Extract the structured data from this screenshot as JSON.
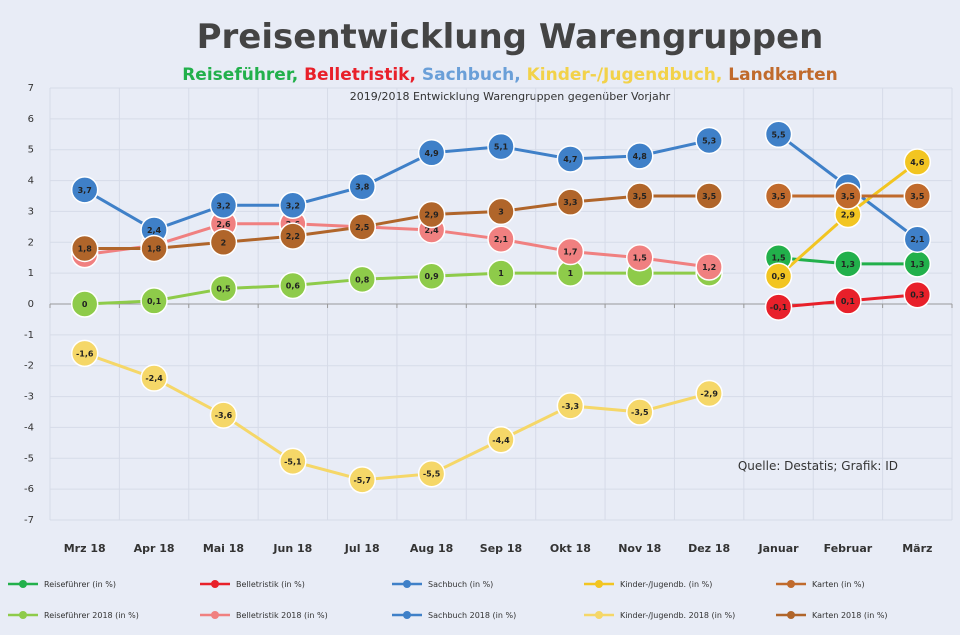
{
  "chart_data": {
    "type": "line",
    "title": "Preisentwicklung Warengruppen",
    "subtitle_parts": [
      {
        "text": "Reiseführer, ",
        "color": "#22b04b"
      },
      {
        "text": "Belletristik, ",
        "color": "#e8202a"
      },
      {
        "text": "Sachbuch, ",
        "color": "#6a9fd8"
      },
      {
        "text": "Kinder-/Jugendbuch, ",
        "color": "#f2d24a"
      },
      {
        "text": "Landkarten",
        "color": "#c06a2c"
      }
    ],
    "note": "2019/2018 Entwicklung Warengruppen gegenüber Vorjahr",
    "source": "Quelle: Destatis; Grafik: ID",
    "ylim": [
      -7,
      7
    ],
    "yticks": [
      "7",
      "6",
      "5",
      "4",
      "3",
      "2",
      "1",
      "0",
      "-1",
      "-2",
      "-3",
      "-4",
      "-5",
      "-6",
      "-7"
    ],
    "categories": [
      "Mrz 18",
      "Apr 18",
      "Mai 18",
      "Jun 18",
      "Jul 18",
      "Aug 18",
      "Sep 18",
      "Okt 18",
      "Nov 18",
      "Dez 18",
      "Januar",
      "Februar",
      "März"
    ],
    "series_2018": [
      {
        "name": "Reiseführer 2018 (in %)",
        "color": "#8ecb4a",
        "values": [
          0,
          0.1,
          0.5,
          0.6,
          0.8,
          0.9,
          1.0,
          1.0,
          1.0,
          1.0,
          null,
          null,
          null
        ],
        "labels": [
          "0",
          "0,1",
          "0,5",
          "0,6",
          "0,8",
          "0,9",
          "1",
          "1",
          "",
          "",
          "",
          "",
          ""
        ]
      },
      {
        "name": "Belletristik 2018 (in %)",
        "color": "#f08080",
        "values": [
          1.6,
          1.9,
          2.6,
          2.6,
          2.5,
          2.4,
          2.1,
          1.7,
          1.5,
          1.2,
          null,
          null,
          null
        ],
        "labels": [
          "1,6",
          "1,9",
          "2,6",
          "2,6",
          "2,5",
          "2,4",
          "2,1",
          "1,7",
          "1,5",
          "1,2",
          "",
          "",
          ""
        ]
      },
      {
        "name": "Sachbuch 2018 (in %)",
        "color": "#3f80c8",
        "values": [
          3.7,
          2.4,
          3.2,
          3.2,
          3.8,
          4.9,
          5.1,
          4.7,
          4.8,
          5.3,
          null,
          null,
          null
        ],
        "labels": [
          "3,7",
          "2,4",
          "3,2",
          "3,2",
          "3,8",
          "4,9",
          "5,1",
          "4,7",
          "4,8",
          "5,3",
          "",
          "",
          ""
        ]
      },
      {
        "name": "Kinder-/Jugendb. 2018 (in %)",
        "color": "#f5d768",
        "values": [
          -1.6,
          -2.4,
          -3.6,
          -5.1,
          -5.7,
          -5.5,
          -4.4,
          -3.3,
          -3.5,
          -2.9,
          null,
          null,
          null
        ],
        "labels": [
          "-1,6",
          "-2,4",
          "-3,6",
          "-5,1",
          "-5,7",
          "-5,5",
          "-4,4",
          "-3,3",
          "-3,5",
          "-2,9",
          "",
          "",
          ""
        ]
      },
      {
        "name": "Karten 2018 (in %)",
        "color": "#b0652a",
        "values": [
          1.8,
          1.8,
          2.0,
          2.2,
          2.5,
          2.9,
          3.0,
          3.3,
          3.5,
          3.5,
          null,
          null,
          null
        ],
        "labels": [
          "1,8",
          "1,8",
          "2",
          "2,2",
          "2,5",
          "2,9",
          "3",
          "3,3",
          "3,5",
          "3,5",
          "",
          "",
          ""
        ]
      }
    ],
    "series_2019": [
      {
        "name": "Reiseführer (in %)",
        "color": "#22b04b",
        "values": [
          null,
          null,
          null,
          null,
          null,
          null,
          null,
          null,
          null,
          null,
          1.5,
          1.3,
          1.3
        ],
        "labels": [
          "",
          "",
          "",
          "",
          "",
          "",
          "",
          "",
          "",
          "",
          "1,5",
          "1,3",
          "1,3"
        ]
      },
      {
        "name": "Belletristik (in %)",
        "color": "#e8202a",
        "values": [
          null,
          null,
          null,
          null,
          null,
          null,
          null,
          null,
          null,
          null,
          -0.1,
          0.1,
          0.3
        ],
        "labels": [
          "",
          "",
          "",
          "",
          "",
          "",
          "",
          "",
          "",
          "",
          "-0,1",
          "0,1",
          "0,3"
        ]
      },
      {
        "name": "Sachbuch (in %)",
        "color": "#3f80c8",
        "values": [
          null,
          null,
          null,
          null,
          null,
          null,
          null,
          null,
          null,
          null,
          5.5,
          3.8,
          2.1
        ],
        "labels": [
          "",
          "",
          "",
          "",
          "",
          "",
          "",
          "",
          "",
          "",
          "5,5",
          "3,8",
          "2,1"
        ]
      },
      {
        "name": "Kinder-/Jugendb. (in %)",
        "color": "#f2c521",
        "values": [
          null,
          null,
          null,
          null,
          null,
          null,
          null,
          null,
          null,
          null,
          0.9,
          2.9,
          4.6
        ],
        "labels": [
          "",
          "",
          "",
          "",
          "",
          "",
          "",
          "",
          "",
          "",
          "0,9",
          "2,9",
          "4,6"
        ]
      },
      {
        "name": "Karten (in %)",
        "color": "#c06a2c",
        "values": [
          null,
          null,
          null,
          null,
          null,
          null,
          null,
          null,
          null,
          null,
          3.5,
          3.5,
          3.5
        ],
        "labels": [
          "",
          "",
          "",
          "",
          "",
          "",
          "",
          "",
          "",
          "",
          "3,5",
          "3,5",
          "3,5"
        ]
      }
    ]
  }
}
